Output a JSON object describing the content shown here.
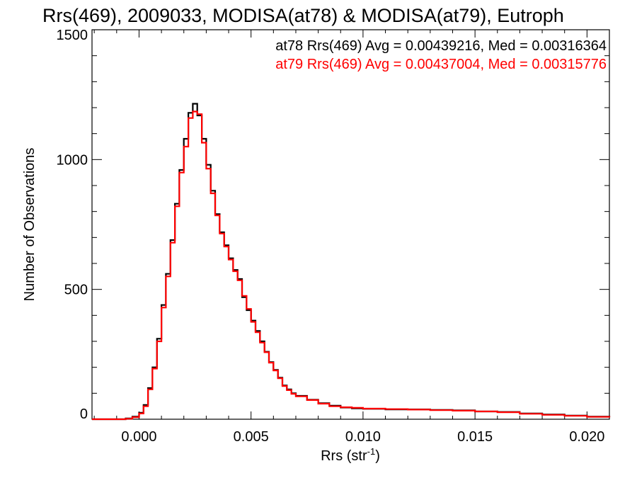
{
  "chart_data": {
    "type": "line",
    "style": "step-histogram",
    "title": "Rrs(469), 2009033, MODISA(at78) & MODISA(at79), Eutroph",
    "xlabel": "Rrs (str",
    "xlabel_sup": "-1",
    "xlabel_end": ")",
    "ylabel": "Number of Observations",
    "xlim": [
      -0.0021,
      0.021
    ],
    "ylim": [
      0,
      1500
    ],
    "xticks": [
      0.0,
      0.005,
      0.01,
      0.015,
      0.02
    ],
    "xtick_labels": [
      "0.000",
      "0.005",
      "0.010",
      "0.015",
      "0.020"
    ],
    "yticks": [
      0,
      500,
      1000,
      1500
    ],
    "ytick_labels": [
      "0",
      "500",
      "1000",
      "1500"
    ],
    "grid": false,
    "legend_placement": "top-right",
    "stats": [
      {
        "text": "at78 Rrs(469) Avg = 0.00439216, Med = 0.00316364",
        "color": "#000000"
      },
      {
        "text": "at79 Rrs(469) Avg = 0.00437004, Med = 0.00315776",
        "color": "#ff0000"
      }
    ],
    "series": [
      {
        "color": "#000000",
        "x": [
          -0.0021,
          -0.001,
          -0.0006,
          -0.0003,
          0.0,
          0.0002,
          0.0004,
          0.0006,
          0.0008,
          0.001,
          0.0012,
          0.0014,
          0.0016,
          0.0018,
          0.002,
          0.0022,
          0.0024,
          0.0026,
          0.0028,
          0.003,
          0.0032,
          0.0034,
          0.0036,
          0.0038,
          0.004,
          0.0042,
          0.0044,
          0.0046,
          0.0048,
          0.005,
          0.0052,
          0.0054,
          0.0056,
          0.0058,
          0.006,
          0.0062,
          0.0064,
          0.0066,
          0.0068,
          0.007,
          0.0075,
          0.008,
          0.0085,
          0.009,
          0.0095,
          0.01,
          0.011,
          0.012,
          0.013,
          0.014,
          0.015,
          0.016,
          0.017,
          0.018,
          0.019,
          0.02,
          0.021
        ],
        "y": [
          0,
          0,
          3,
          10,
          25,
          55,
          120,
          200,
          310,
          440,
          560,
          690,
          830,
          960,
          1080,
          1180,
          1215,
          1170,
          1080,
          980,
          880,
          790,
          720,
          670,
          620,
          575,
          540,
          470,
          420,
          380,
          340,
          300,
          260,
          220,
          190,
          160,
          130,
          115,
          100,
          90,
          75,
          62,
          52,
          45,
          42,
          40,
          38,
          38,
          36,
          34,
          30,
          28,
          22,
          18,
          14,
          10,
          8
        ]
      },
      {
        "color": "#ff0000",
        "x": [
          -0.0021,
          -0.001,
          -0.0006,
          -0.0003,
          0.0,
          0.0002,
          0.0004,
          0.0006,
          0.0008,
          0.001,
          0.0012,
          0.0014,
          0.0016,
          0.0018,
          0.002,
          0.0022,
          0.0024,
          0.0026,
          0.0028,
          0.003,
          0.0032,
          0.0034,
          0.0036,
          0.0038,
          0.004,
          0.0042,
          0.0044,
          0.0046,
          0.0048,
          0.005,
          0.0052,
          0.0054,
          0.0056,
          0.0058,
          0.006,
          0.0062,
          0.0064,
          0.0066,
          0.0068,
          0.007,
          0.0075,
          0.008,
          0.0085,
          0.009,
          0.0095,
          0.01,
          0.011,
          0.012,
          0.013,
          0.014,
          0.015,
          0.016,
          0.017,
          0.018,
          0.019,
          0.02,
          0.021
        ],
        "y": [
          0,
          0,
          2,
          8,
          22,
          50,
          115,
          195,
          300,
          430,
          550,
          680,
          820,
          950,
          1050,
          1160,
          1185,
          1175,
          1065,
          965,
          870,
          785,
          715,
          665,
          615,
          570,
          535,
          475,
          425,
          375,
          335,
          295,
          258,
          218,
          188,
          158,
          128,
          112,
          98,
          88,
          74,
          60,
          50,
          46,
          44,
          41,
          39,
          37,
          35,
          33,
          30,
          27,
          21,
          17,
          13,
          9,
          7
        ]
      }
    ]
  }
}
